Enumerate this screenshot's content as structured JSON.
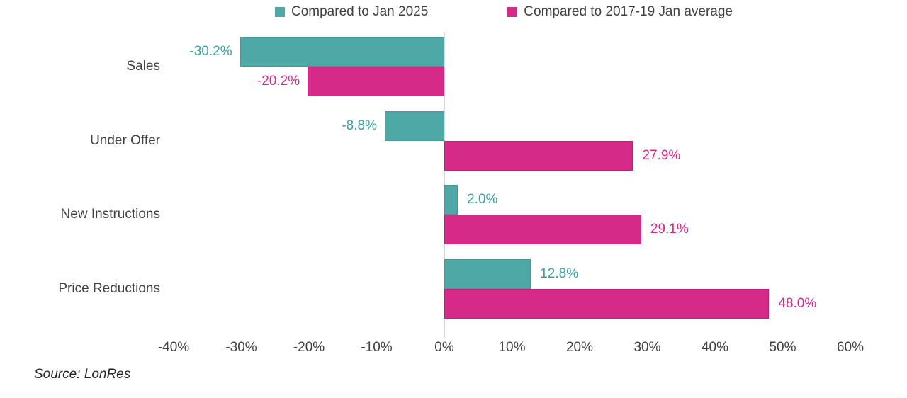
{
  "legend": {
    "items": [
      {
        "label": "Compared to Jan 2025",
        "color": "#4ea8a6"
      },
      {
        "label": "Compared to 2017-19 Jan average",
        "color": "#d62a88"
      }
    ]
  },
  "chart_data": {
    "type": "bar",
    "orientation": "horizontal",
    "categories": [
      "Sales",
      "Under Offer",
      "New Instructions",
      "Price Reductions"
    ],
    "series": [
      {
        "name": "Compared to Jan 2025",
        "color": "#4ea8a6",
        "border_color": "#459a99",
        "values": [
          -30.2,
          -8.8,
          2.0,
          12.8
        ],
        "labels": [
          "-30.2%",
          "-8.8%",
          "2.0%",
          "12.8%"
        ]
      },
      {
        "name": "Compared to 2017-19 Jan average",
        "color": "#d62a88",
        "border_color": "#bf2078",
        "values": [
          -20.2,
          27.9,
          29.1,
          48.0
        ],
        "labels": [
          "-20.2%",
          "27.9%",
          "29.1%",
          "48.0%"
        ]
      }
    ],
    "xlim": [
      -40,
      60
    ],
    "xtick_values": [
      -40,
      -30,
      -20,
      -10,
      0,
      10,
      20,
      30,
      40,
      50,
      60
    ],
    "xtick_labels": [
      "-40%",
      "-30%",
      "-20%",
      "-10%",
      "0%",
      "10%",
      "20%",
      "30%",
      "40%",
      "50%",
      "60%"
    ],
    "legend_position": "top",
    "grid": false,
    "axis_line_color": "#d9d9d9"
  },
  "source": "Source: LonRes"
}
